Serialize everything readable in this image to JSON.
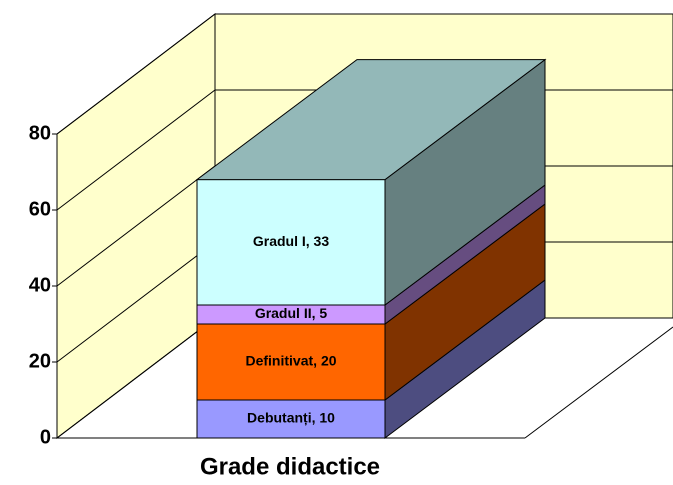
{
  "chart_data": {
    "type": "bar3d_stacked",
    "categories": [
      "Grade didactice"
    ],
    "series": [
      {
        "name": "Debutanți",
        "color": "#9999ff",
        "values": [
          10
        ],
        "value_labels": [
          "Debutanți, 10"
        ]
      },
      {
        "name": "Definitivat",
        "color": "#ff6600",
        "values": [
          20
        ],
        "value_labels": [
          "Definitivat, 20"
        ]
      },
      {
        "name": "Gradul II",
        "color": "#cc99ff",
        "values": [
          5
        ],
        "value_labels": [
          "Gradul II, 5"
        ]
      },
      {
        "name": "Gradul I",
        "color": "#ccffff",
        "values": [
          33
        ],
        "value_labels": [
          "Gradul I, 33"
        ]
      }
    ],
    "ylim": [
      0,
      80
    ],
    "yticks": [
      0,
      20,
      40,
      60,
      80
    ],
    "grid": true
  }
}
